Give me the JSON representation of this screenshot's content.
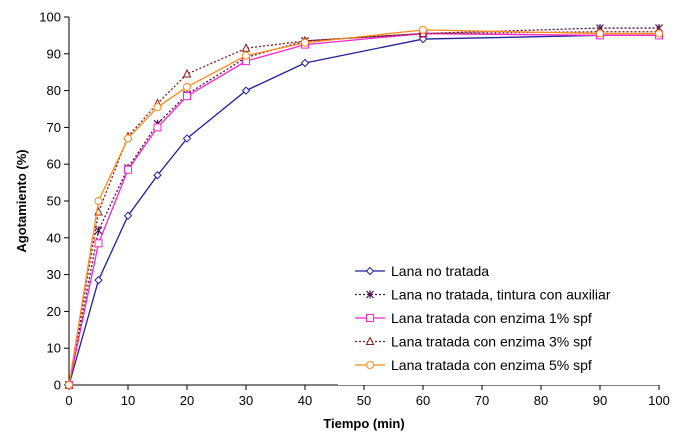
{
  "chart_data": {
    "type": "line",
    "title": "",
    "xlabel": "Tiempo (min)",
    "ylabel": "Agotamiento (%)",
    "xlim": [
      0,
      100
    ],
    "ylim": [
      0,
      100
    ],
    "xticks": [
      "0",
      "10",
      "20",
      "30",
      "40",
      "50",
      "60",
      "70",
      "80",
      "90",
      "100"
    ],
    "yticks": [
      "0",
      "10",
      "20",
      "30",
      "40",
      "50",
      "60",
      "70",
      "80",
      "90",
      "100"
    ],
    "grid": false,
    "legend_position": "bottom-right",
    "x": [
      0,
      5,
      10,
      15,
      20,
      30,
      40,
      60,
      90,
      100
    ],
    "series": [
      {
        "name": "Lana no tratada",
        "color": "#1f1fa0",
        "line": "solid",
        "marker": "diamond",
        "values": [
          0,
          28.5,
          46,
          57,
          67,
          80,
          87.5,
          94,
          95,
          95
        ]
      },
      {
        "name": "Lana no tratada, tintura con auxiliar",
        "color": "#4b0f4b",
        "line": "dotted",
        "marker": "asterisk",
        "values": [
          0,
          42,
          59,
          71,
          79,
          89,
          93.5,
          95.5,
          97,
          97
        ]
      },
      {
        "name": "Lana tratada con enzima 1% spf",
        "color": "#ff22cc",
        "line": "solid",
        "marker": "square",
        "values": [
          0,
          38.5,
          58.5,
          70,
          78.5,
          88,
          92.5,
          95.5,
          95,
          95
        ]
      },
      {
        "name": "Lana tratada con enzima 3% spf",
        "color": "#8b1a1a",
        "line": "dotted",
        "marker": "triangle",
        "values": [
          0,
          47,
          67.5,
          76.5,
          84.5,
          91.5,
          93.5,
          95.5,
          96,
          96
        ]
      },
      {
        "name": "Lana tratada con enzima 5% spf",
        "color": "#ff8c1a",
        "line": "solid",
        "marker": "circle",
        "values": [
          0,
          50,
          67,
          75.5,
          81,
          89.5,
          93,
          96.5,
          95.5,
          95.5
        ]
      }
    ]
  }
}
